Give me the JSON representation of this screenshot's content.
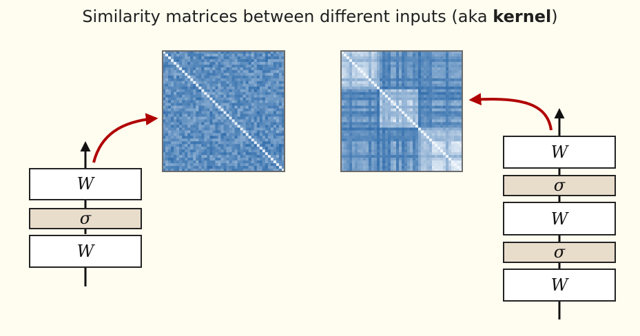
{
  "title": {
    "prefix": "Similarity matrices between different inputs (aka ",
    "emphasis": "kernel",
    "suffix": ")"
  },
  "colors": {
    "background": "#fffdf0",
    "layer_box_fill": "#ffffff",
    "activation_fill": "#e8dccb",
    "arrow_red": "#b00000",
    "matrix_blue": "#1f67a8",
    "matrix_light": "#eef5fb"
  },
  "shallow_network": {
    "layers": [
      {
        "kind": "linear",
        "label": "W"
      },
      {
        "kind": "activation",
        "label": "σ"
      },
      {
        "kind": "linear",
        "label": "W"
      }
    ]
  },
  "deep_network": {
    "layers": [
      {
        "kind": "linear",
        "label": "W"
      },
      {
        "kind": "activation",
        "label": "σ"
      },
      {
        "kind": "linear",
        "label": "W"
      },
      {
        "kind": "activation",
        "label": "σ"
      },
      {
        "kind": "linear",
        "label": "W"
      }
    ]
  },
  "matrices": {
    "shallow": {
      "style": "noisy-uniform",
      "icon": "kernel-heatmap"
    },
    "deep": {
      "style": "block-structured",
      "icon": "kernel-heatmap"
    }
  }
}
